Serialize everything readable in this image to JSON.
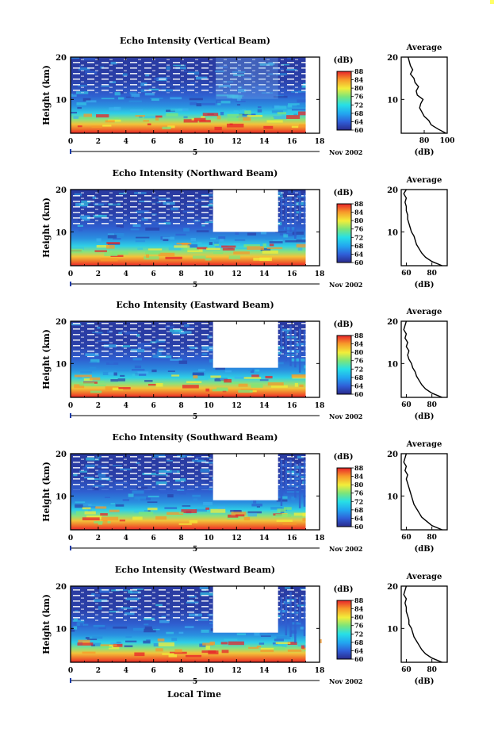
{
  "figure": {
    "x_axis_title": "Local Time",
    "date_label": "Nov 2002",
    "day_marker": "5",
    "colorbar_unit": "(dB)",
    "avg_title": "Average",
    "avg_xlabel": "(dB)",
    "ylabel": "Height (km)"
  },
  "chart_data": [
    {
      "type": "heatmap",
      "title": "Echo Intensity (Vertical Beam)",
      "xlabel": "Local Time",
      "ylabel": "Height (km)",
      "xlim": [
        0,
        18
      ],
      "ylim": [
        2,
        20
      ],
      "xticks": [
        0,
        2,
        4,
        6,
        8,
        10,
        12,
        14,
        16,
        18
      ],
      "yticks": [
        10,
        20
      ],
      "colorbar": {
        "label": "(dB)",
        "ticks": [
          60,
          64,
          68,
          72,
          76,
          80,
          84,
          88
        ],
        "range": [
          60,
          88
        ]
      },
      "data_end_hour": 17,
      "data_gap": null,
      "average_profile": {
        "title": "Average",
        "xlabel": "(dB)",
        "xticks": [
          80,
          100
        ],
        "xlim": [
          60,
          100
        ],
        "heights": [
          2,
          3,
          4,
          5,
          6,
          7,
          8,
          9,
          10,
          11,
          12,
          13,
          14,
          15,
          16,
          17,
          18,
          19,
          20
        ],
        "values": [
          99,
          92,
          86,
          84,
          80,
          78,
          76,
          77,
          79,
          74,
          73,
          75,
          72,
          71,
          68,
          70,
          68,
          67,
          66
        ]
      }
    },
    {
      "type": "heatmap",
      "title": "Echo Intensity (Northward Beam)",
      "xlabel": "Local Time",
      "ylabel": "Height (km)",
      "xlim": [
        0,
        18
      ],
      "ylim": [
        2,
        20
      ],
      "xticks": [
        0,
        2,
        4,
        6,
        8,
        10,
        12,
        14,
        16,
        18
      ],
      "yticks": [
        10,
        20
      ],
      "colorbar": {
        "label": "(dB)",
        "ticks": [
          60,
          64,
          68,
          72,
          76,
          80,
          84,
          88
        ],
        "range": [
          60,
          88
        ]
      },
      "data_end_hour": 17,
      "data_gap": {
        "from": 10.3,
        "to": 15.0,
        "top_km": 10
      },
      "average_profile": {
        "title": "Average",
        "xlabel": "(dB)",
        "xticks": [
          60,
          80
        ],
        "xlim": [
          56,
          92
        ],
        "heights": [
          2,
          3,
          4,
          5,
          6,
          7,
          8,
          9,
          10,
          11,
          12,
          13,
          14,
          15,
          16,
          17,
          18,
          19,
          20
        ],
        "values": [
          88,
          80,
          75,
          72,
          70,
          68,
          67,
          66,
          64,
          63,
          62,
          61,
          61,
          60,
          60,
          59,
          60,
          58,
          60
        ]
      }
    },
    {
      "type": "heatmap",
      "title": "Echo Intensity (Eastward Beam)",
      "xlabel": "Local Time",
      "ylabel": "Height (km)",
      "xlim": [
        0,
        18
      ],
      "ylim": [
        2,
        20
      ],
      "xticks": [
        0,
        2,
        4,
        6,
        8,
        10,
        12,
        14,
        16,
        18
      ],
      "yticks": [
        10,
        20
      ],
      "colorbar": {
        "label": "(dB)",
        "ticks": [
          60,
          64,
          68,
          72,
          76,
          80,
          84,
          88
        ],
        "range": [
          60,
          88
        ]
      },
      "data_end_hour": 17,
      "data_gap": {
        "from": 10.3,
        "to": 15.0,
        "top_km": 9
      },
      "average_profile": {
        "title": "Average",
        "xlabel": "(dB)",
        "xticks": [
          60,
          80
        ],
        "xlim": [
          56,
          92
        ],
        "heights": [
          2,
          3,
          4,
          5,
          6,
          7,
          8,
          9,
          10,
          11,
          12,
          13,
          14,
          15,
          16,
          17,
          18,
          19,
          20
        ],
        "values": [
          88,
          80,
          75,
          72,
          70,
          68,
          67,
          65,
          64,
          62,
          61,
          62,
          60,
          61,
          59,
          60,
          58,
          59,
          60
        ]
      }
    },
    {
      "type": "heatmap",
      "title": "Echo Intensity (Southward Beam)",
      "xlabel": "Local Time",
      "ylabel": "Height (km)",
      "xlim": [
        0,
        18
      ],
      "ylim": [
        2,
        20
      ],
      "xticks": [
        0,
        2,
        4,
        6,
        8,
        10,
        12,
        14,
        16,
        18
      ],
      "yticks": [
        10,
        20
      ],
      "colorbar": {
        "label": "(dB)",
        "ticks": [
          60,
          64,
          68,
          72,
          76,
          80,
          84,
          88
        ],
        "range": [
          60,
          88
        ]
      },
      "data_end_hour": 17,
      "data_gap": {
        "from": 10.3,
        "to": 15.0,
        "top_km": 9
      },
      "average_profile": {
        "title": "Average",
        "xlabel": "(dB)",
        "xticks": [
          60,
          80
        ],
        "xlim": [
          56,
          92
        ],
        "heights": [
          2,
          3,
          4,
          5,
          6,
          7,
          8,
          9,
          10,
          11,
          12,
          13,
          14,
          15,
          16,
          17,
          18,
          19,
          20
        ],
        "values": [
          88,
          80,
          76,
          72,
          70,
          68,
          66,
          65,
          64,
          63,
          62,
          61,
          60,
          61,
          59,
          60,
          58,
          59,
          60
        ]
      }
    },
    {
      "type": "heatmap",
      "title": "Echo Intensity (Westward Beam)",
      "xlabel": "Local Time",
      "ylabel": "Height (km)",
      "xlim": [
        0,
        18
      ],
      "ylim": [
        2,
        20
      ],
      "xticks": [
        0,
        2,
        4,
        6,
        8,
        10,
        12,
        14,
        16,
        18
      ],
      "yticks": [
        10,
        20
      ],
      "colorbar": {
        "label": "(dB)",
        "ticks": [
          60,
          64,
          68,
          72,
          76,
          80,
          84,
          88
        ],
        "range": [
          60,
          88
        ]
      },
      "data_end_hour": 17,
      "data_gap": {
        "from": 10.3,
        "to": 15.0,
        "top_km": 9
      },
      "average_profile": {
        "title": "Average",
        "xlabel": "(dB)",
        "xticks": [
          60,
          80
        ],
        "xlim": [
          56,
          92
        ],
        "heights": [
          2,
          3,
          4,
          5,
          6,
          7,
          8,
          9,
          10,
          11,
          12,
          13,
          14,
          15,
          16,
          17,
          18,
          19,
          20
        ],
        "values": [
          88,
          80,
          75,
          72,
          70,
          68,
          66,
          65,
          64,
          62,
          62,
          61,
          60,
          60,
          59,
          60,
          58,
          59,
          60
        ]
      }
    }
  ]
}
